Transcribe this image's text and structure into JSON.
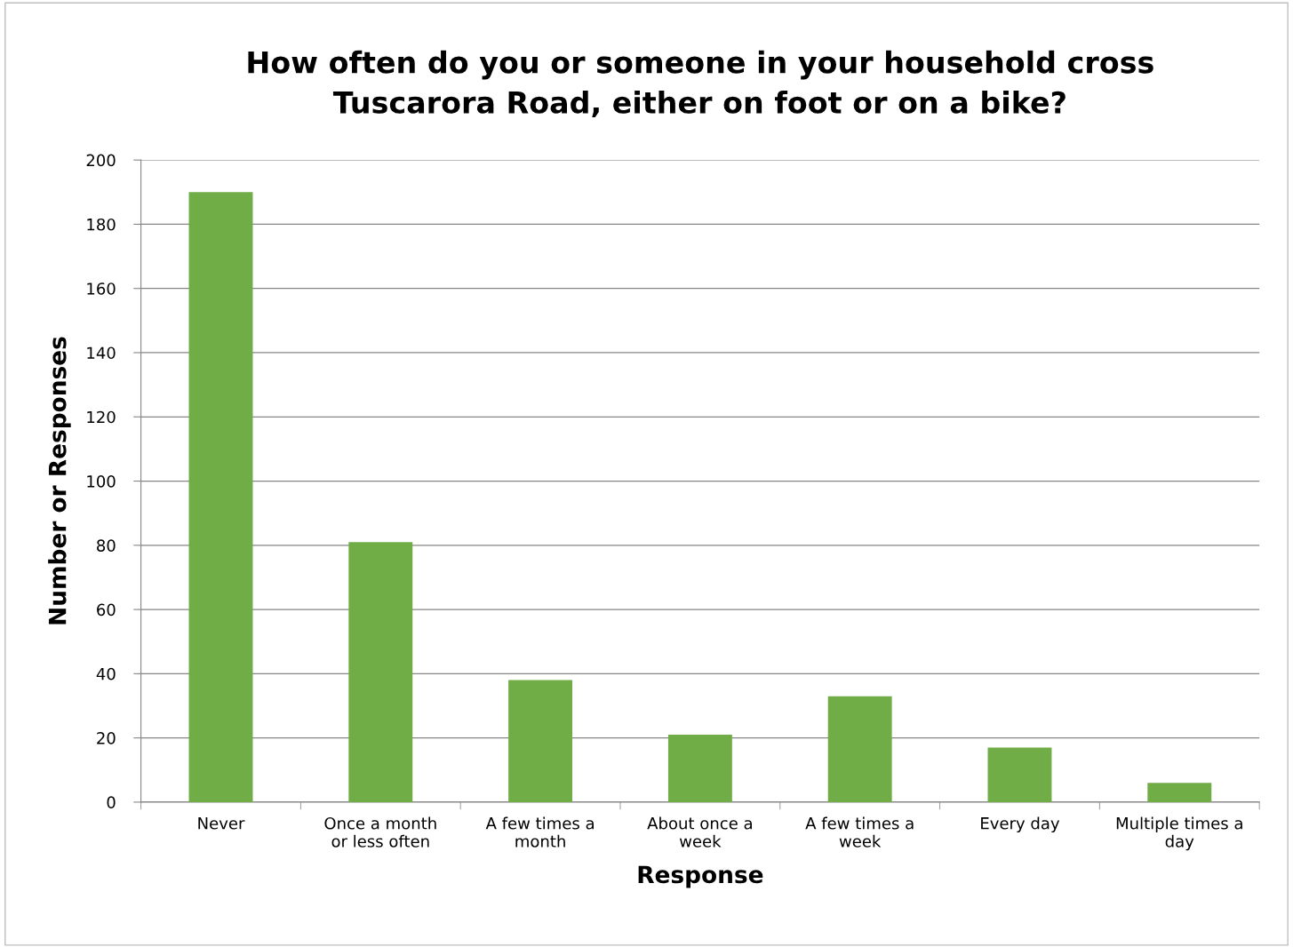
{
  "chart_data": {
    "type": "bar",
    "title": "How often do you or someone in your household cross\nTuscarora Road, either on foot or on a bike?",
    "xlabel": "Response",
    "ylabel": "Number or Responses",
    "categories": [
      "Never",
      "Once a month\nor less often",
      "A few times a\nmonth",
      "About once a\nweek",
      "A few times a\nweek",
      "Every day",
      "Multiple times a\nday"
    ],
    "values": [
      190,
      81,
      38,
      21,
      33,
      17,
      6
    ],
    "color": "#70ad47",
    "ylim": [
      0,
      200
    ],
    "yticks": [
      0,
      20,
      40,
      60,
      80,
      100,
      120,
      140,
      160,
      180,
      200
    ],
    "grid": "y",
    "legend": false
  }
}
